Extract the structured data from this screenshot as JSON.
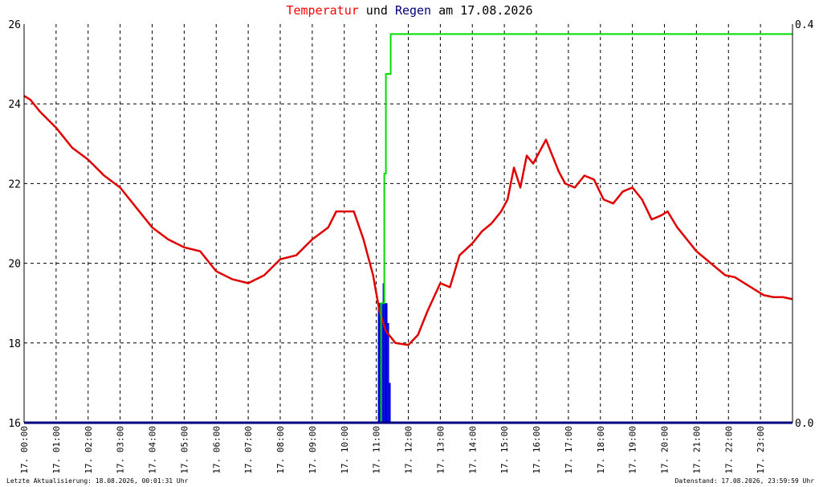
{
  "title": {
    "part1": "Temperatur",
    "part2": " und ",
    "part3": "Regen",
    "part4": " am 17.08.2026",
    "color_temp": "#ff0000",
    "color_rain": "#000080",
    "color_text": "#000000"
  },
  "footer": {
    "left": "Letzte Aktualisierung: 18.08.2026, 00:01:31 Uhr",
    "right": "Datenstand: 17.08.2026, 23:59:59 Uhr"
  },
  "chart_data": {
    "type": "line",
    "x_unit": "hour of day (0–24)",
    "xlim": [
      0,
      24
    ],
    "y_left": {
      "label": "",
      "ylim": [
        16,
        26
      ],
      "ticks": [
        "16",
        "18",
        "20",
        "22",
        "24",
        "26"
      ]
    },
    "y_right": {
      "label": "",
      "ylim": [
        0.0,
        0.4
      ],
      "ticks": [
        "0.0",
        "0.4"
      ]
    },
    "x_ticks": [
      "17. 00:00",
      "17. 01:00",
      "17. 02:00",
      "17. 03:00",
      "17. 04:00",
      "17. 05:00",
      "17. 06:00",
      "17. 07:00",
      "17. 08:00",
      "17. 09:00",
      "17. 10:00",
      "17. 11:00",
      "17. 12:00",
      "17. 13:00",
      "17. 14:00",
      "17. 15:00",
      "17. 16:00",
      "17. 17:00",
      "17. 18:00",
      "17. 19:00",
      "17. 20:00",
      "17. 21:00",
      "17. 22:00",
      "17. 23:00"
    ],
    "grid": true,
    "colors": {
      "temperature": "#e00000",
      "rain_bars": "#0000e0",
      "rain_sum": "#00dd00",
      "baseline": "#000080",
      "grid": "#000000"
    },
    "series": [
      {
        "axis": "left",
        "color_key": "temperature",
        "x": [
          0,
          0.2,
          0.5,
          1.0,
          1.5,
          2.0,
          2.5,
          3.0,
          3.5,
          4.0,
          4.5,
          5.0,
          5.5,
          6.0,
          6.5,
          7.0,
          7.5,
          8.0,
          8.5,
          9.0,
          9.5,
          9.75,
          10.0,
          10.3,
          10.6,
          10.9,
          11.1,
          11.3,
          11.6,
          12.0,
          12.3,
          12.6,
          13.0,
          13.3,
          13.6,
          14.0,
          14.3,
          14.6,
          14.9,
          15.1,
          15.3,
          15.5,
          15.7,
          15.9,
          16.1,
          16.3,
          16.5,
          16.7,
          16.9,
          17.2,
          17.5,
          17.8,
          18.1,
          18.4,
          18.7,
          19.0,
          19.3,
          19.6,
          19.9,
          20.1,
          20.4,
          20.7,
          21.0,
          21.3,
          21.6,
          21.9,
          22.2,
          22.5,
          22.8,
          23.1,
          23.4,
          23.7,
          24.0
        ],
        "values": [
          24.2,
          24.1,
          23.8,
          23.4,
          22.9,
          22.6,
          22.2,
          21.9,
          21.4,
          20.9,
          20.6,
          20.4,
          20.3,
          19.8,
          19.6,
          19.5,
          19.7,
          20.1,
          20.2,
          20.6,
          20.9,
          21.3,
          21.3,
          21.3,
          20.6,
          19.7,
          18.8,
          18.3,
          18.0,
          17.95,
          18.2,
          18.8,
          19.5,
          19.4,
          20.2,
          20.5,
          20.8,
          21.0,
          21.3,
          21.6,
          22.4,
          21.9,
          22.7,
          22.5,
          22.8,
          23.1,
          22.7,
          22.3,
          22.0,
          21.9,
          22.2,
          22.1,
          21.6,
          21.5,
          21.8,
          21.9,
          21.6,
          21.1,
          21.2,
          21.3,
          20.9,
          20.6,
          20.3,
          20.1,
          19.9,
          19.7,
          19.65,
          19.5,
          19.35,
          19.2,
          19.15,
          19.15,
          19.1
        ]
      },
      {
        "axis": "right",
        "color_key": "rain_sum",
        "x": [
          11.0,
          11.15,
          11.25,
          11.3,
          11.4,
          11.45,
          11.5,
          24.0
        ],
        "values": [
          0.0,
          0.12,
          0.25,
          0.35,
          0.35,
          0.39,
          0.39,
          0.39
        ]
      },
      {
        "axis": "right",
        "color_key": "rain_bars",
        "bars": [
          {
            "start": 11.05,
            "end": 11.2,
            "value": 0.12
          },
          {
            "start": 11.2,
            "end": 11.25,
            "value": 0.14
          },
          {
            "start": 11.25,
            "end": 11.35,
            "value": 0.12
          },
          {
            "start": 11.35,
            "end": 11.4,
            "value": 0.1
          },
          {
            "start": 11.4,
            "end": 11.45,
            "value": 0.04
          }
        ]
      }
    ]
  }
}
